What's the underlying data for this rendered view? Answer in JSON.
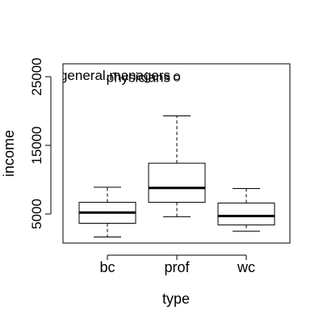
{
  "chart_data": {
    "type": "boxplot",
    "xlabel": "type",
    "ylabel": "income",
    "ylim": [
      1000,
      26000
    ],
    "yticks": [
      5000,
      15000,
      25000
    ],
    "ytick_labels": [
      "5000",
      "15000",
      "25000"
    ],
    "categories": [
      "bc",
      "prof",
      "wc"
    ],
    "boxes": [
      {
        "name": "bc",
        "whisker_low": 1650,
        "q1": 3650,
        "median": 5200,
        "q3": 6700,
        "whisker_high": 8900
      },
      {
        "name": "prof",
        "whisker_low": 4600,
        "q1": 6700,
        "median": 8800,
        "q3": 12400,
        "whisker_high": 19300
      },
      {
        "name": "wc",
        "whisker_low": 2500,
        "q1": 3400,
        "median": 4700,
        "q3": 6600,
        "whisker_high": 8700
      }
    ],
    "outliers": [
      {
        "category": "prof",
        "value": 25000,
        "label": "general.managers"
      },
      {
        "category": "prof",
        "value": 24800,
        "label": "physicians"
      }
    ],
    "grid": false
  }
}
